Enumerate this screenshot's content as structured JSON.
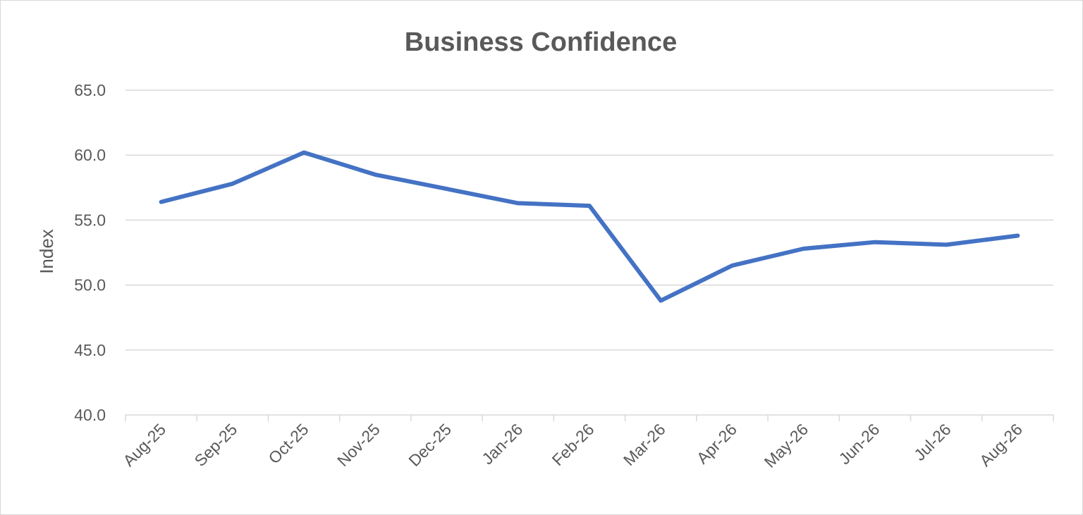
{
  "chart_data": {
    "type": "line",
    "title": "Business Confidence",
    "xlabel": "",
    "ylabel": "Index",
    "ylim": [
      40.0,
      65.0
    ],
    "yticks": [
      "40.0",
      "45.0",
      "50.0",
      "55.0",
      "60.0",
      "65.0"
    ],
    "ytick_values": [
      40,
      45,
      50,
      55,
      60,
      65
    ],
    "categories": [
      "Aug-25",
      "Sep-25",
      "Oct-25",
      "Nov-25",
      "Dec-25",
      "Jan-26",
      "Feb-26",
      "Mar-26",
      "Apr-26",
      "May-26",
      "Jun-26",
      "Jul-26",
      "Aug-26"
    ],
    "series": [
      {
        "color": "#4472C4",
        "values": [
          56.4,
          57.8,
          60.2,
          58.5,
          57.4,
          56.3,
          56.1,
          48.8,
          51.5,
          52.8,
          53.3,
          53.1,
          53.8
        ]
      }
    ],
    "grid": true,
    "legend": "none"
  }
}
